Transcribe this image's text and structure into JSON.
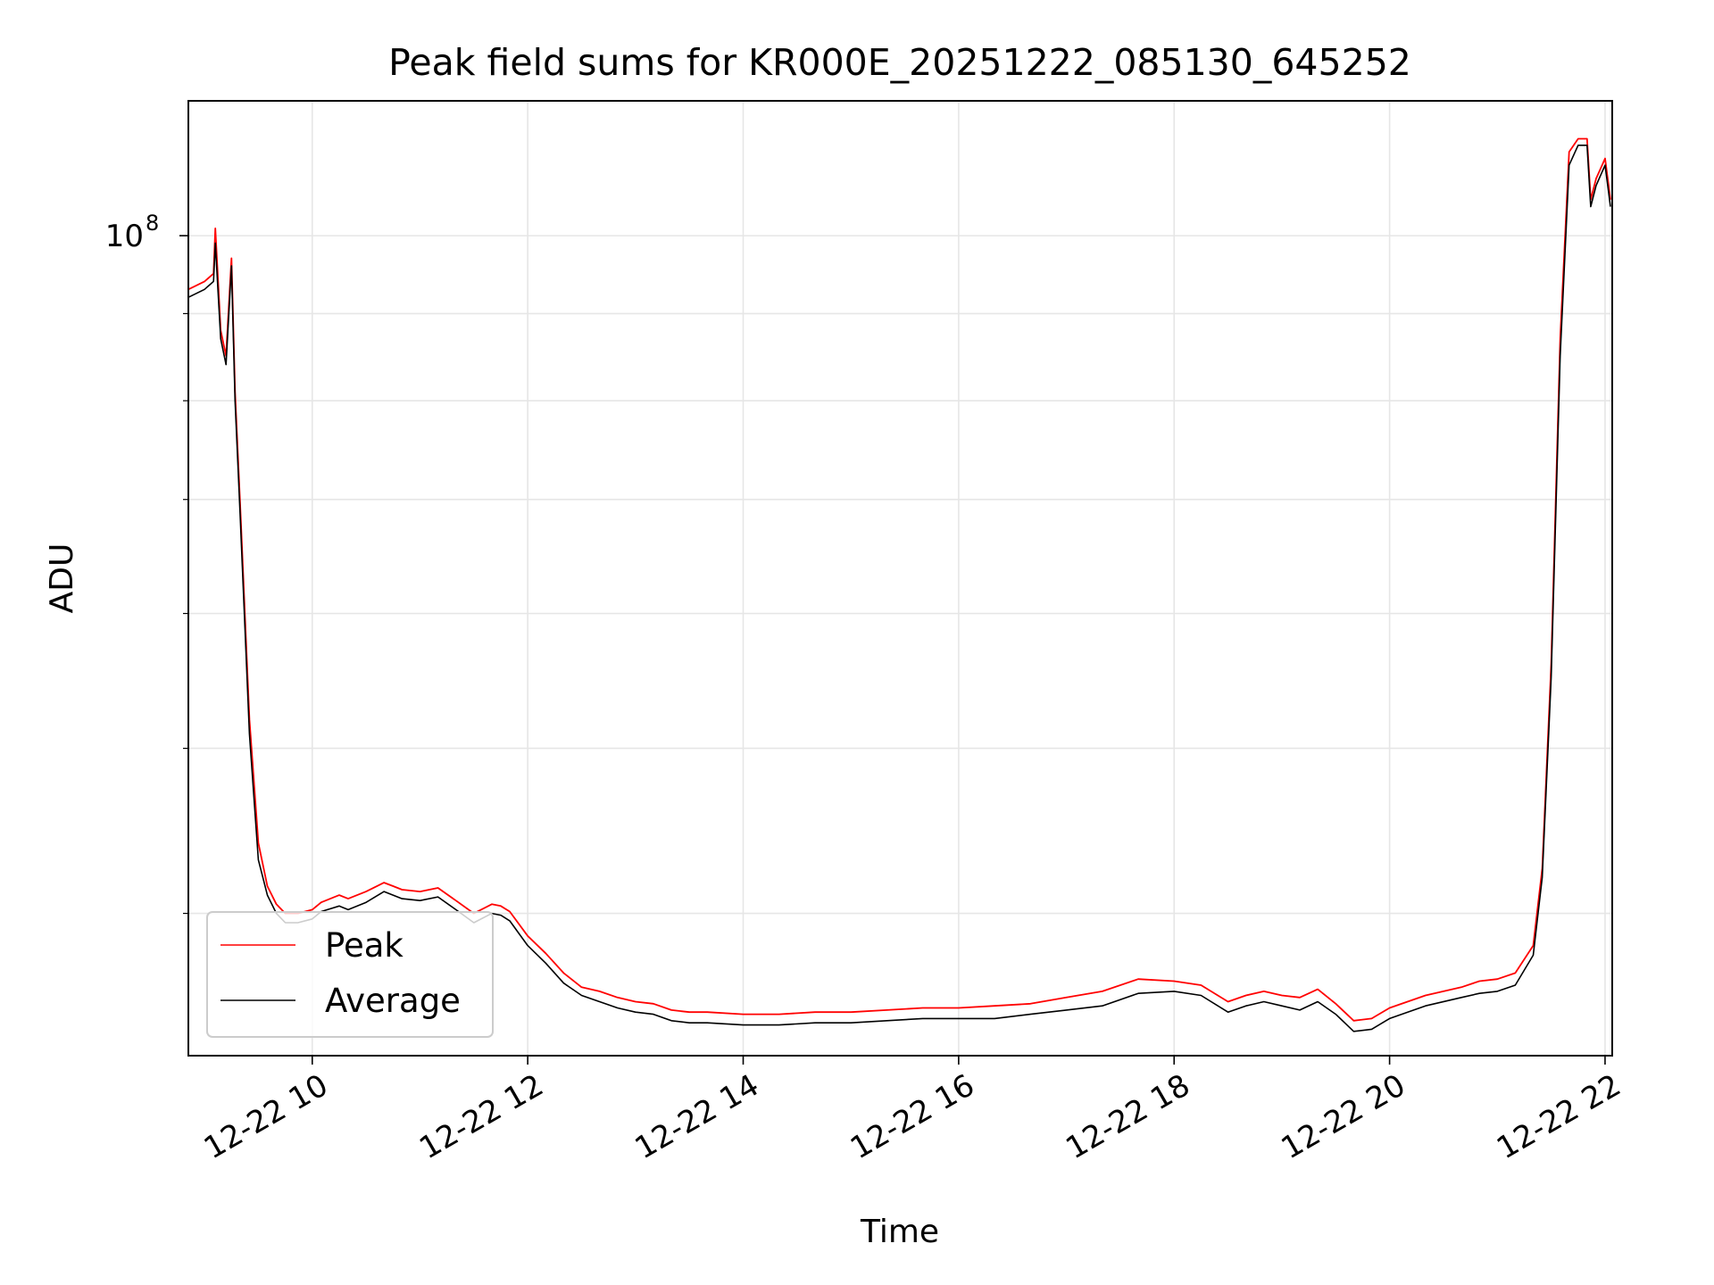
{
  "chart_data": {
    "type": "line",
    "title": "Peak field sums for KR000E_20251222_085130_645252",
    "xlabel": "Time",
    "ylabel": "ADU",
    "yscale": "log",
    "grid": true,
    "legend_position": "lower-left",
    "xlim": [
      "2025-12-22 08:51",
      "2025-12-22 22:04"
    ],
    "ylim": [
      33000000,
      120000000
    ],
    "x_ticks": [
      {
        "value": "2025-12-22 10:00",
        "label": "12-22 10"
      },
      {
        "value": "2025-12-22 12:00",
        "label": "12-22 12"
      },
      {
        "value": "2025-12-22 14:00",
        "label": "12-22 14"
      },
      {
        "value": "2025-12-22 16:00",
        "label": "12-22 16"
      },
      {
        "value": "2025-12-22 18:00",
        "label": "12-22 18"
      },
      {
        "value": "2025-12-22 20:00",
        "label": "12-22 20"
      },
      {
        "value": "2025-12-22 22:00",
        "label": "12-22 22"
      }
    ],
    "y_major_tick": {
      "value": 100000000,
      "label_base": "10",
      "label_exp": "8"
    },
    "y_minor_ticks": [
      40000000,
      50000000,
      60000000,
      70000000,
      80000000,
      90000000
    ],
    "series": [
      {
        "name": "Peak",
        "color": "#ff0000"
      },
      {
        "name": "Average",
        "color": "#000000"
      }
    ],
    "x": [
      "2025-12-22 08:51",
      "2025-12-22 09:00",
      "2025-12-22 09:05",
      "2025-12-22 09:06",
      "2025-12-22 09:09",
      "2025-12-22 09:12",
      "2025-12-22 09:15",
      "2025-12-22 09:17",
      "2025-12-22 09:20",
      "2025-12-22 09:25",
      "2025-12-22 09:30",
      "2025-12-22 09:35",
      "2025-12-22 09:40",
      "2025-12-22 09:45",
      "2025-12-22 09:52",
      "2025-12-22 10:00",
      "2025-12-22 10:05",
      "2025-12-22 10:15",
      "2025-12-22 10:20",
      "2025-12-22 10:30",
      "2025-12-22 10:40",
      "2025-12-22 10:45",
      "2025-12-22 10:50",
      "2025-12-22 11:00",
      "2025-12-22 11:10",
      "2025-12-22 11:20",
      "2025-12-22 11:30",
      "2025-12-22 11:40",
      "2025-12-22 11:45",
      "2025-12-22 11:50",
      "2025-12-22 12:00",
      "2025-12-22 12:10",
      "2025-12-22 12:20",
      "2025-12-22 12:30",
      "2025-12-22 12:40",
      "2025-12-22 12:50",
      "2025-12-22 13:00",
      "2025-12-22 13:10",
      "2025-12-22 13:20",
      "2025-12-22 13:30",
      "2025-12-22 13:40",
      "2025-12-22 14:00",
      "2025-12-22 14:20",
      "2025-12-22 14:40",
      "2025-12-22 15:00",
      "2025-12-22 15:20",
      "2025-12-22 15:40",
      "2025-12-22 16:00",
      "2025-12-22 16:20",
      "2025-12-22 16:40",
      "2025-12-22 17:00",
      "2025-12-22 17:20",
      "2025-12-22 17:40",
      "2025-12-22 18:00",
      "2025-12-22 18:15",
      "2025-12-22 18:30",
      "2025-12-22 18:40",
      "2025-12-22 18:50",
      "2025-12-22 19:00",
      "2025-12-22 19:10",
      "2025-12-22 19:20",
      "2025-12-22 19:30",
      "2025-12-22 19:40",
      "2025-12-22 19:50",
      "2025-12-22 20:00",
      "2025-12-22 20:20",
      "2025-12-22 20:40",
      "2025-12-22 20:50",
      "2025-12-22 21:00",
      "2025-12-22 21:10",
      "2025-12-22 21:20",
      "2025-12-22 21:25",
      "2025-12-22 21:30",
      "2025-12-22 21:35",
      "2025-12-22 21:40",
      "2025-12-22 21:45",
      "2025-12-22 21:50",
      "2025-12-22 21:52",
      "2025-12-22 21:55",
      "2025-12-22 22:00",
      "2025-12-22 22:03"
    ],
    "average_values": [
      92000000,
      93000000,
      94000000,
      99000000,
      87000000,
      84000000,
      96000000,
      80000000,
      68000000,
      51000000,
      43000000,
      41000000,
      40000000,
      39500000,
      39500000,
      39700000,
      40100000,
      40400000,
      40200000,
      40600000,
      41200000,
      41000000,
      40800000,
      40700000,
      40900000,
      40200000,
      39500000,
      40000000,
      39900000,
      39600000,
      38300000,
      37400000,
      36400000,
      35800000,
      35500000,
      35200000,
      35000000,
      34900000,
      34600000,
      34500000,
      34500000,
      34400000,
      34400000,
      34500000,
      34500000,
      34600000,
      34700000,
      34700000,
      34700000,
      34900000,
      35100000,
      35300000,
      35900000,
      36000000,
      35800000,
      35000000,
      35300000,
      35500000,
      35300000,
      35100000,
      35500000,
      34900000,
      34100000,
      34200000,
      34700000,
      35300000,
      35700000,
      35900000,
      36000000,
      36300000,
      37800000,
      42000000,
      55000000,
      85000000,
      110000000,
      113000000,
      113000000,
      104000000,
      107000000,
      110000000,
      104000000
    ],
    "peak_values": [
      93000000,
      94000000,
      95000000,
      101000000,
      88000000,
      85000000,
      97000000,
      81000000,
      69000000,
      52000000,
      44000000,
      41500000,
      40500000,
      40000000,
      40000000,
      40200000,
      40600000,
      41000000,
      40800000,
      41200000,
      41700000,
      41500000,
      41300000,
      41200000,
      41400000,
      40700000,
      40000000,
      40500000,
      40400000,
      40100000,
      38800000,
      37900000,
      36900000,
      36200000,
      36000000,
      35700000,
      35500000,
      35400000,
      35100000,
      35000000,
      35000000,
      34900000,
      34900000,
      35000000,
      35000000,
      35100000,
      35200000,
      35200000,
      35300000,
      35400000,
      35700000,
      36000000,
      36600000,
      36500000,
      36300000,
      35500000,
      35800000,
      36000000,
      35800000,
      35700000,
      36100000,
      35400000,
      34600000,
      34700000,
      35200000,
      35800000,
      36200000,
      36500000,
      36600000,
      36900000,
      38300000,
      42500000,
      56000000,
      87000000,
      112000000,
      114000000,
      114000000,
      105000000,
      108000000,
      111000000,
      105000000
    ]
  }
}
